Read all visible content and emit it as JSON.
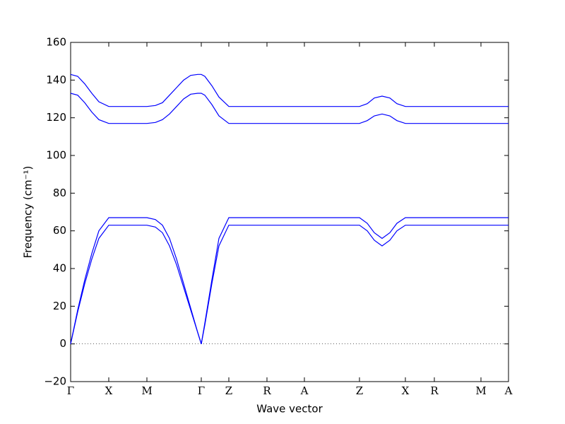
{
  "chart_data": {
    "type": "line",
    "xlabel": "Wave vector",
    "ylabel": "Frequency (cm⁻¹)",
    "x": [
      0,
      10,
      20,
      30,
      40,
      54,
      108,
      120,
      130,
      140,
      150,
      160,
      170,
      180,
      185,
      190,
      200,
      210,
      224,
      409,
      420,
      430,
      441,
      452,
      462,
      474,
      620
    ],
    "series": [
      {
        "color": "#0000ff",
        "values": [
          0,
          17,
          32,
          45,
          56,
          63,
          63,
          62,
          59,
          52,
          42,
          30,
          18,
          6,
          0,
          10,
          32,
          52,
          63,
          63,
          60,
          55,
          52,
          55,
          60,
          63,
          63
        ]
      },
      {
        "color": "#0000ff",
        "values": [
          0,
          18,
          34,
          48,
          60,
          67,
          67,
          66,
          63,
          56,
          45,
          32,
          19,
          6,
          0,
          11,
          34,
          56,
          67,
          67,
          64,
          59,
          56,
          59,
          64,
          67,
          67
        ]
      },
      {
        "color": "#0000ff",
        "values": [
          133,
          132,
          128,
          123,
          119,
          117,
          117,
          117.5,
          119,
          122,
          126,
          130,
          132.5,
          133,
          133,
          132,
          127,
          121,
          117,
          117,
          118.5,
          121,
          122,
          121,
          118.5,
          117,
          117
        ]
      },
      {
        "color": "#0000ff",
        "values": [
          143,
          142,
          138,
          133,
          128.5,
          126,
          126,
          126.5,
          128,
          132,
          136,
          140,
          142.5,
          143,
          143,
          142,
          137,
          131,
          126,
          126,
          127.5,
          130.5,
          131.5,
          130.5,
          127.5,
          126,
          126
        ]
      }
    ],
    "xlim": [
      0,
      620
    ],
    "xticks": [
      {
        "value": 0,
        "label": "Γ"
      },
      {
        "value": 54,
        "label": "X"
      },
      {
        "value": 108,
        "label": "M"
      },
      {
        "value": 185,
        "label": "Γ"
      },
      {
        "value": 224,
        "label": "Z"
      },
      {
        "value": 278,
        "label": "R"
      },
      {
        "value": 331,
        "label": "A"
      },
      {
        "value": 409,
        "label": "Z"
      },
      {
        "value": 474,
        "label": "X"
      },
      {
        "value": 515,
        "label": "R"
      },
      {
        "value": 581,
        "label": "M"
      },
      {
        "value": 620,
        "label": "A"
      }
    ],
    "ylim": [
      -20,
      160
    ],
    "yticks": [
      {
        "value": -20,
        "label": "−20"
      },
      0,
      20,
      40,
      60,
      80,
      100,
      120,
      140,
      160
    ],
    "zero_line": true
  }
}
